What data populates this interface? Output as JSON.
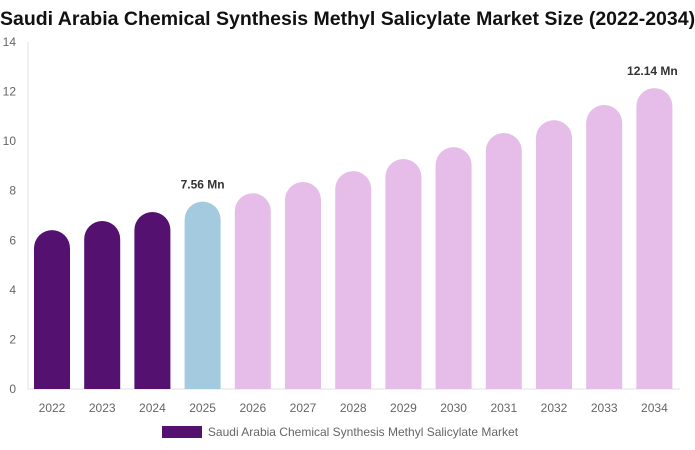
{
  "chart_data": {
    "type": "bar",
    "title": "Saudi Arabia Chemical Synthesis Methyl Salicylate Market Size (2022-2034)",
    "categories": [
      "2022",
      "2023",
      "2024",
      "2025",
      "2026",
      "2027",
      "2028",
      "2029",
      "2030",
      "2031",
      "2032",
      "2033",
      "2034"
    ],
    "series": [
      {
        "name": "Saudi Arabia Chemical Synthesis Methyl Salicylate Market",
        "values": [
          6.41,
          6.78,
          7.14,
          7.56,
          7.9,
          8.35,
          8.79,
          9.28,
          9.76,
          10.33,
          10.85,
          11.46,
          12.14
        ]
      }
    ],
    "data_labels": [
      {
        "index": 3,
        "text": "7.56 Mn"
      },
      {
        "index": 12,
        "text": "12.14 Mn"
      }
    ],
    "ylim": [
      0,
      14
    ],
    "yticks": [
      0,
      2,
      4,
      6,
      8,
      10,
      12,
      14
    ],
    "grid": false,
    "legend_position": "bottom",
    "colors": {
      "historical": "#541170",
      "base_year": "#a3cadf",
      "forecast": "#e6bce8"
    },
    "bar_color_groups": [
      "historical",
      "historical",
      "historical",
      "base_year",
      "forecast",
      "forecast",
      "forecast",
      "forecast",
      "forecast",
      "forecast",
      "forecast",
      "forecast",
      "forecast"
    ]
  }
}
